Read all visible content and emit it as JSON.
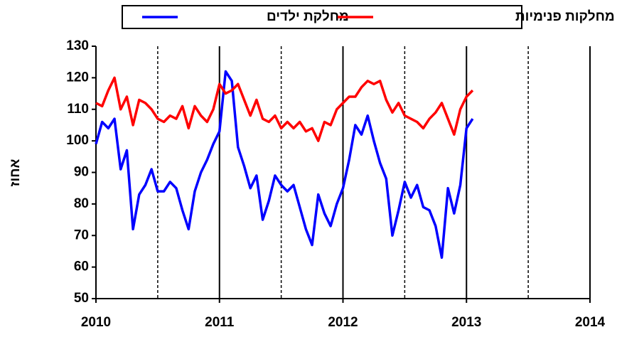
{
  "chart_data": {
    "type": "line",
    "ylabel": "אחוז",
    "x": [
      2010.0,
      2010.05,
      2010.1,
      2010.15,
      2010.2,
      2010.25,
      2010.3,
      2010.35,
      2010.4,
      2010.45,
      2010.5,
      2010.55,
      2010.6,
      2010.65,
      2010.7,
      2010.75,
      2010.8,
      2010.85,
      2010.9,
      2010.95,
      2011.0,
      2011.05,
      2011.1,
      2011.15,
      2011.2,
      2011.25,
      2011.3,
      2011.35,
      2011.4,
      2011.45,
      2011.5,
      2011.55,
      2011.6,
      2011.65,
      2011.7,
      2011.75,
      2011.8,
      2011.85,
      2011.9,
      2011.95,
      2012.0,
      2012.05,
      2012.1,
      2012.15,
      2012.2,
      2012.25,
      2012.3,
      2012.35,
      2012.4,
      2012.45,
      2012.5,
      2012.55,
      2012.6,
      2012.65,
      2012.7,
      2012.75,
      2012.8,
      2012.85,
      2012.9,
      2012.95,
      2013.0,
      2013.05
    ],
    "series": [
      {
        "name": "מחלקת ילדים",
        "color": "#0000ff",
        "values": [
          99,
          106,
          104,
          107,
          91,
          97,
          72,
          83,
          86,
          91,
          84,
          84,
          87,
          85,
          78,
          72,
          84,
          90,
          94,
          99,
          103,
          122,
          119,
          98,
          92,
          85,
          89,
          75,
          81,
          89,
          86,
          84,
          86,
          79,
          72,
          67,
          83,
          77,
          73,
          80,
          85,
          94,
          105,
          102,
          108,
          100,
          93,
          88,
          70,
          78,
          87,
          82,
          86,
          79,
          78,
          73,
          63,
          85,
          77,
          86,
          104,
          107
        ]
      },
      {
        "name": "מחלקות פנימיות",
        "color": "#ff0000",
        "values": [
          112,
          111,
          116,
          120,
          110,
          114,
          105,
          113,
          112,
          110,
          107,
          106,
          108,
          107,
          111,
          104,
          111,
          108,
          106,
          110,
          118,
          115,
          116,
          118,
          113,
          108,
          113,
          107,
          106,
          108,
          104,
          106,
          104,
          106,
          103,
          104,
          100,
          106,
          105,
          110,
          112,
          114,
          114,
          117,
          119,
          118,
          119,
          113,
          109,
          112,
          108,
          107,
          106,
          104,
          107,
          109,
          112,
          107,
          102,
          110,
          114,
          116
        ]
      }
    ],
    "xlim": [
      2010,
      2014
    ],
    "xticks": [
      2010,
      2011,
      2012,
      2013,
      2014
    ],
    "xminorticks": [
      2010.5,
      2011.5,
      2012.5,
      2013.5
    ],
    "ylim": [
      50,
      130
    ],
    "yticks": [
      50,
      60,
      70,
      80,
      90,
      100,
      110,
      120,
      130
    ]
  }
}
